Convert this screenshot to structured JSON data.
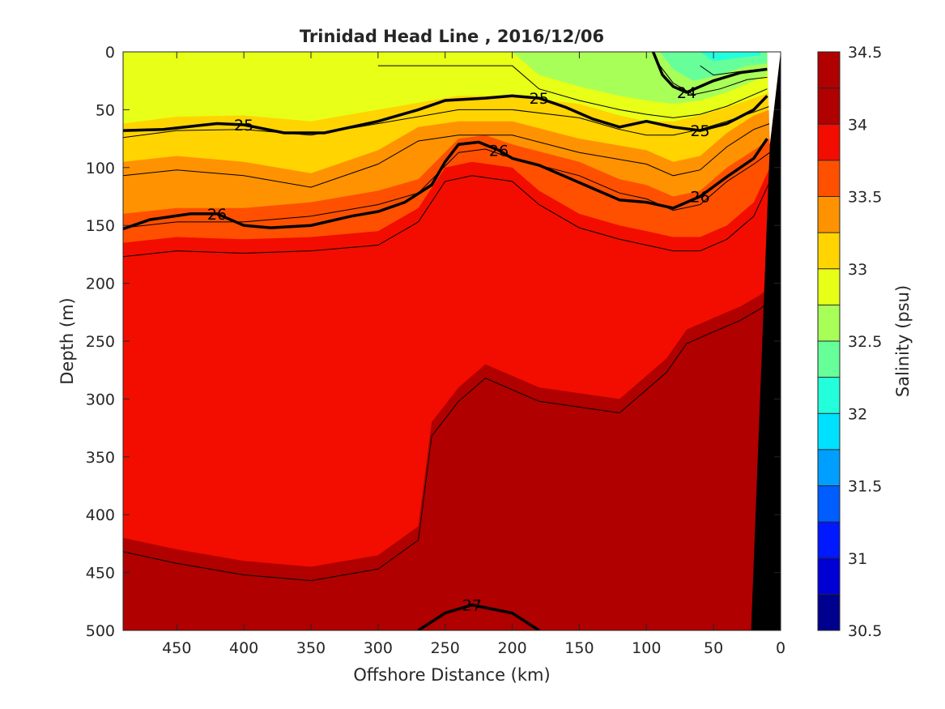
{
  "chart_data": {
    "type": "contour",
    "title": "Trinidad Head Line , 2016/12/06",
    "xlabel": "Offshore Distance (km)",
    "ylabel": "Depth (m)",
    "colorbar_label": "Salinity (psu)",
    "x_axis": {
      "reversed": true,
      "lim": [
        0,
        490
      ],
      "ticks": [
        450,
        400,
        350,
        300,
        250,
        200,
        150,
        100,
        50,
        0
      ]
    },
    "y_axis": {
      "reversed": true,
      "lim": [
        0,
        500
      ],
      "ticks": [
        0,
        50,
        100,
        150,
        200,
        250,
        300,
        350,
        400,
        450,
        500
      ]
    },
    "colorbar": {
      "lim": [
        30.5,
        34.5
      ],
      "ticks": [
        30.5,
        31,
        31.5,
        32,
        32.5,
        33,
        33.5,
        34,
        34.5
      ],
      "levels": [
        30.5,
        30.75,
        31.0,
        31.25,
        31.5,
        31.75,
        32.0,
        32.25,
        32.5,
        32.75,
        33.0,
        33.25,
        33.5,
        33.75,
        34.0,
        34.25,
        34.5
      ],
      "colors": [
        "#00008f",
        "#0000d4",
        "#0019ff",
        "#005dff",
        "#009fff",
        "#00e0ff",
        "#24ffdb",
        "#66ff99",
        "#a8ff57",
        "#e8ff17",
        "#ffd400",
        "#ff9200",
        "#ff5000",
        "#f20d00",
        "#b00000"
      ]
    },
    "salinity_bands": [
      {
        "range": [
          34.0,
          34.25
        ],
        "color": "#f20d00",
        "top": [
          [
            490,
            420
          ],
          [
            450,
            430
          ],
          [
            400,
            440
          ],
          [
            350,
            445
          ],
          [
            300,
            435
          ],
          [
            270,
            410
          ],
          [
            260,
            320
          ],
          [
            240,
            290
          ],
          [
            220,
            270
          ],
          [
            200,
            280
          ],
          [
            180,
            290
          ],
          [
            150,
            295
          ],
          [
            120,
            300
          ],
          [
            100,
            280
          ],
          [
            85,
            265
          ],
          [
            70,
            240
          ],
          [
            50,
            230
          ],
          [
            30,
            220
          ],
          [
            15,
            210
          ],
          [
            5,
            200
          ]
        ]
      },
      {
        "range": [
          33.75,
          34.0
        ],
        "color": "#ff5000",
        "top": [
          [
            490,
            165
          ],
          [
            450,
            160
          ],
          [
            400,
            162
          ],
          [
            350,
            160
          ],
          [
            300,
            155
          ],
          [
            270,
            135
          ],
          [
            250,
            100
          ],
          [
            230,
            95
          ],
          [
            200,
            100
          ],
          [
            180,
            120
          ],
          [
            150,
            140
          ],
          [
            120,
            150
          ],
          [
            100,
            155
          ],
          [
            80,
            160
          ],
          [
            60,
            160
          ],
          [
            40,
            150
          ],
          [
            20,
            130
          ],
          [
            8,
            100
          ]
        ]
      },
      {
        "range": [
          33.5,
          33.75
        ],
        "color": "#ff9200",
        "top": [
          [
            490,
            140
          ],
          [
            450,
            135
          ],
          [
            400,
            135
          ],
          [
            350,
            130
          ],
          [
            300,
            120
          ],
          [
            270,
            110
          ],
          [
            240,
            75
          ],
          [
            220,
            72
          ],
          [
            200,
            80
          ],
          [
            150,
            95
          ],
          [
            120,
            110
          ],
          [
            100,
            115
          ],
          [
            80,
            125
          ],
          [
            60,
            120
          ],
          [
            40,
            100
          ],
          [
            20,
            85
          ],
          [
            8,
            75
          ]
        ]
      },
      {
        "range": [
          33.25,
          33.5
        ],
        "color": "#ffd400",
        "top": [
          [
            490,
            95
          ],
          [
            450,
            90
          ],
          [
            400,
            95
          ],
          [
            350,
            105
          ],
          [
            300,
            85
          ],
          [
            270,
            65
          ],
          [
            240,
            60
          ],
          [
            200,
            60
          ],
          [
            150,
            75
          ],
          [
            100,
            85
          ],
          [
            80,
            95
          ],
          [
            60,
            90
          ],
          [
            40,
            70
          ],
          [
            20,
            55
          ],
          [
            8,
            50
          ]
        ]
      },
      {
        "range": [
          33.0,
          33.25
        ],
        "color": "#e8ff17",
        "top": [
          [
            490,
            62
          ],
          [
            450,
            56
          ],
          [
            400,
            55
          ],
          [
            350,
            60
          ],
          [
            300,
            50
          ],
          [
            270,
            44
          ],
          [
            240,
            38
          ],
          [
            200,
            38
          ],
          [
            150,
            45
          ],
          [
            120,
            55
          ],
          [
            100,
            60
          ],
          [
            80,
            60
          ],
          [
            60,
            55
          ],
          [
            40,
            48
          ],
          [
            20,
            40
          ],
          [
            8,
            35
          ]
        ]
      },
      {
        "range": [
          32.75,
          33.0
        ],
        "color": "#a8ff57",
        "top": [
          [
            300,
            0
          ],
          [
            200,
            0
          ],
          [
            180,
            20
          ],
          [
            150,
            30
          ],
          [
            120,
            38
          ],
          [
            100,
            42
          ],
          [
            80,
            45
          ],
          [
            60,
            42
          ],
          [
            40,
            35
          ],
          [
            20,
            25
          ],
          [
            10,
            20
          ]
        ]
      },
      {
        "range": [
          32.5,
          32.75
        ],
        "color": "#66ff99",
        "top": [
          [
            90,
            0
          ],
          [
            80,
            15
          ],
          [
            65,
            25
          ],
          [
            45,
            20
          ],
          [
            25,
            12
          ],
          [
            10,
            10
          ]
        ]
      },
      {
        "range": [
          32.25,
          32.5
        ],
        "color": "#24ffdb",
        "top": [
          [
            60,
            0
          ],
          [
            50,
            8
          ],
          [
            30,
            5
          ],
          [
            15,
            3
          ]
        ]
      }
    ],
    "sigma_t_contours": [
      {
        "label": "24",
        "points": [
          [
            95,
            0
          ],
          [
            88,
            20
          ],
          [
            80,
            30
          ],
          [
            70,
            35
          ],
          [
            50,
            25
          ],
          [
            30,
            18
          ],
          [
            10,
            15
          ]
        ]
      },
      {
        "label": "25",
        "points": [
          [
            490,
            68
          ],
          [
            460,
            67
          ],
          [
            420,
            62
          ],
          [
            400,
            63
          ],
          [
            370,
            70
          ],
          [
            340,
            70
          ],
          [
            320,
            65
          ],
          [
            300,
            60
          ],
          [
            270,
            50
          ],
          [
            250,
            42
          ],
          [
            220,
            40
          ],
          [
            200,
            38
          ],
          [
            180,
            40
          ],
          [
            160,
            48
          ],
          [
            140,
            58
          ],
          [
            120,
            65
          ],
          [
            100,
            60
          ],
          [
            80,
            65
          ],
          [
            60,
            68
          ],
          [
            40,
            62
          ],
          [
            20,
            50
          ],
          [
            10,
            38
          ]
        ]
      },
      {
        "label": "26",
        "points": [
          [
            490,
            153
          ],
          [
            470,
            145
          ],
          [
            440,
            140
          ],
          [
            420,
            140
          ],
          [
            400,
            150
          ],
          [
            380,
            152
          ],
          [
            350,
            150
          ],
          [
            320,
            142
          ],
          [
            300,
            138
          ],
          [
            280,
            130
          ],
          [
            260,
            115
          ],
          [
            250,
            95
          ],
          [
            240,
            80
          ],
          [
            225,
            78
          ],
          [
            210,
            85
          ],
          [
            200,
            92
          ],
          [
            180,
            98
          ],
          [
            160,
            108
          ],
          [
            140,
            118
          ],
          [
            120,
            128
          ],
          [
            100,
            130
          ],
          [
            80,
            135
          ],
          [
            60,
            125
          ],
          [
            40,
            108
          ],
          [
            20,
            92
          ],
          [
            10,
            75
          ]
        ]
      },
      {
        "label": "27",
        "points": [
          [
            270,
            500
          ],
          [
            250,
            485
          ],
          [
            230,
            478
          ],
          [
            200,
            485
          ],
          [
            180,
            500
          ]
        ]
      }
    ],
    "land_mask_color": "#000000"
  }
}
